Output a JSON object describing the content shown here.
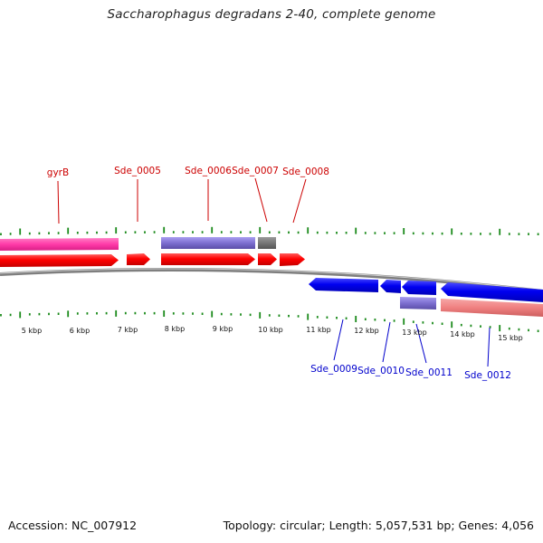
{
  "title": "Saccharophagus degradans 2-40, complete genome",
  "footer": {
    "accession": "Accession: NC_007912",
    "summary": "Topology: circular; Length: 5,057,531 bp; Genes: 4,056"
  },
  "colors": {
    "forward_cds": "#ff0000",
    "reverse_cds": "#0000ee",
    "forward_label": "#cc0000",
    "reverse_label": "#0000cc",
    "gene_pink": "#ff3aa8",
    "gene_purple": "#7d6fd0",
    "gene_gray": "#777777",
    "gene_salmon": "#f08080",
    "tick": "#1b8a1b",
    "backbone": "#7f7f7f"
  },
  "scale_labels": [
    "5 kbp",
    "6 kbp",
    "7 kbp",
    "8 kbp",
    "9 kbp",
    "10 kbp",
    "11 kbp",
    "12 kbp",
    "13 kbp",
    "14 kbp",
    "15 kbp"
  ],
  "forward_features": [
    {
      "name": "gyrB",
      "type": "gene",
      "color": "pink"
    },
    {
      "name": "gyrB",
      "type": "CDS",
      "color": "red"
    },
    {
      "name": "Sde_0005",
      "type": "CDS",
      "color": "red"
    },
    {
      "name": "Sde_0006",
      "type": "gene",
      "color": "purple"
    },
    {
      "name": "Sde_0006",
      "type": "CDS",
      "color": "red"
    },
    {
      "name": "Sde_0007",
      "type": "gene",
      "color": "gray"
    },
    {
      "name": "Sde_0007",
      "type": "CDS",
      "color": "red"
    },
    {
      "name": "Sde_0008",
      "type": "CDS",
      "color": "red"
    }
  ],
  "reverse_features": [
    {
      "name": "Sde_0009",
      "type": "CDS",
      "color": "blue"
    },
    {
      "name": "Sde_0010",
      "type": "CDS",
      "color": "blue"
    },
    {
      "name": "Sde_0011",
      "type": "CDS",
      "color": "blue"
    },
    {
      "name": "Sde_0011",
      "type": "gene",
      "color": "purple"
    },
    {
      "name": "Sde_0012",
      "type": "CDS",
      "color": "blue"
    },
    {
      "name": "Sde_0012",
      "type": "gene",
      "color": "salmon"
    }
  ]
}
